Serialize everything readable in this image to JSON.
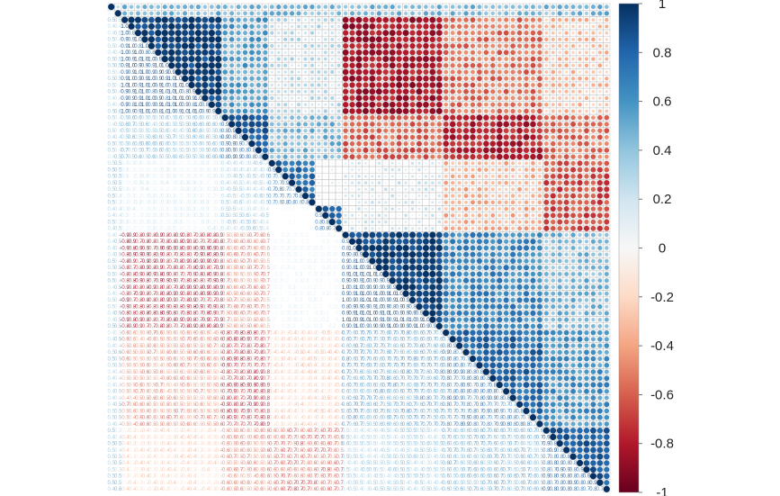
{
  "chart_data": {
    "type": "heatmap",
    "title": "",
    "subtitle": "",
    "xlabel": "",
    "ylabel": "",
    "n_variables": 75,
    "matrix_shape": "upper",
    "glyph": "circle",
    "grid": true,
    "colorbar": {
      "placement": "right",
      "range": [
        -1,
        1
      ],
      "ticks": [
        {
          "value": 1,
          "label": "1"
        },
        {
          "value": 0.8,
          "label": "0.8"
        },
        {
          "value": 0.6,
          "label": "0.6"
        },
        {
          "value": 0.4,
          "label": "0.4"
        },
        {
          "value": 0.2,
          "label": "0.2"
        },
        {
          "value": 0,
          "label": "0"
        },
        {
          "value": -0.2,
          "label": "-0.2"
        },
        {
          "value": -0.4,
          "label": "-0.4"
        },
        {
          "value": -0.6,
          "label": "-0.6"
        },
        {
          "value": -0.8,
          "label": "-0.8"
        },
        {
          "value": -1,
          "label": "-1"
        }
      ],
      "colors": {
        "positive": "#053061",
        "zero": "#f7f7f7",
        "negative": "#67001f"
      }
    },
    "blocks": [
      {
        "from": 0,
        "to": 1,
        "r": 0.35
      },
      {
        "from": 2,
        "to": 16,
        "r": 0.92
      },
      {
        "from": 17,
        "to": 23,
        "r": 0.82
      },
      {
        "from": 24,
        "to": 30,
        "r": 0.75
      },
      {
        "from": 31,
        "to": 34,
        "r": 0.8
      },
      {
        "from": 35,
        "to": 49,
        "r": 0.93
      },
      {
        "from": 50,
        "to": 64,
        "r": 0.78
      },
      {
        "from": 65,
        "to": 74,
        "r": 0.82
      }
    ],
    "cross_block": [
      {
        "rows": [
          2,
          16
        ],
        "cols": [
          17,
          23
        ],
        "r": 0.55
      },
      {
        "rows": [
          2,
          16
        ],
        "cols": [
          24,
          34
        ],
        "r": 0.25
      },
      {
        "rows": [
          2,
          16
        ],
        "cols": [
          35,
          49
        ],
        "r": -0.82
      },
      {
        "rows": [
          2,
          16
        ],
        "cols": [
          50,
          64
        ],
        "r": -0.55
      },
      {
        "rows": [
          2,
          16
        ],
        "cols": [
          65,
          74
        ],
        "r": -0.3
      },
      {
        "rows": [
          17,
          23
        ],
        "cols": [
          24,
          34
        ],
        "r": 0.45
      },
      {
        "rows": [
          17,
          23
        ],
        "cols": [
          35,
          49
        ],
        "r": -0.6
      },
      {
        "rows": [
          17,
          23
        ],
        "cols": [
          50,
          64
        ],
        "r": -0.78
      },
      {
        "rows": [
          17,
          23
        ],
        "cols": [
          65,
          74
        ],
        "r": -0.55
      },
      {
        "rows": [
          24,
          34
        ],
        "cols": [
          35,
          49
        ],
        "r": 0.15
      },
      {
        "rows": [
          24,
          34
        ],
        "cols": [
          50,
          64
        ],
        "r": -0.35
      },
      {
        "rows": [
          24,
          34
        ],
        "cols": [
          65,
          74
        ],
        "r": -0.65
      },
      {
        "rows": [
          35,
          49
        ],
        "cols": [
          50,
          64
        ],
        "r": 0.65
      },
      {
        "rows": [
          35,
          49
        ],
        "cols": [
          65,
          74
        ],
        "r": 0.45
      },
      {
        "rows": [
          50,
          64
        ],
        "cols": [
          65,
          74
        ],
        "r": 0.6
      },
      {
        "rows": [
          0,
          1
        ],
        "cols": [
          2,
          74
        ],
        "r": 0.45
      }
    ]
  }
}
